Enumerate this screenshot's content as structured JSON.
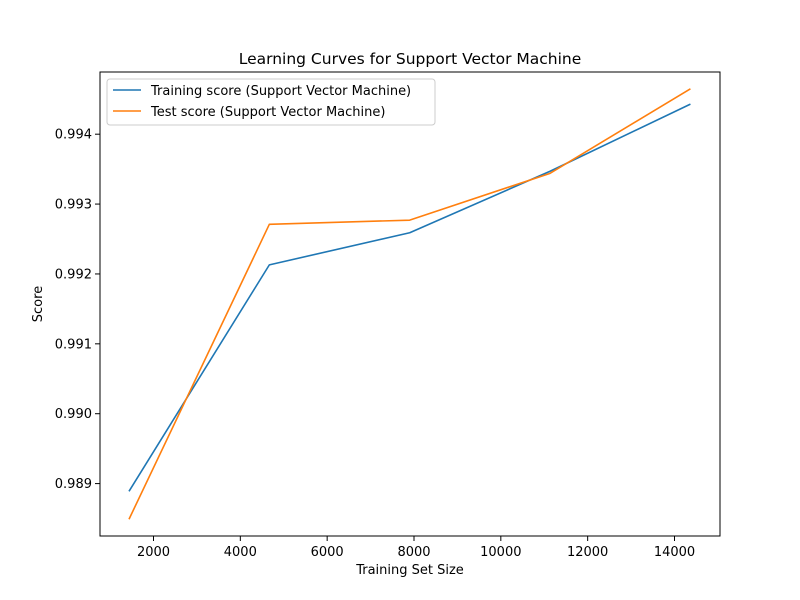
{
  "chart_data": {
    "type": "line",
    "title": "Learning Curves for Support Vector Machine",
    "xlabel": "Training Set Size",
    "ylabel": "Score",
    "xlim": [
      768,
      15048
    ],
    "ylim": [
      0.98825,
      0.99489
    ],
    "xticks": [
      2000,
      4000,
      6000,
      8000,
      10000,
      12000,
      14000
    ],
    "xtick_labels": [
      "2000",
      "4000",
      "6000",
      "8000",
      "10000",
      "12000",
      "14000"
    ],
    "yticks": [
      0.989,
      0.99,
      0.991,
      0.992,
      0.993,
      0.994
    ],
    "ytick_labels": [
      "0.989",
      "0.990",
      "0.991",
      "0.992",
      "0.993",
      "0.994"
    ],
    "grid": false,
    "legend_position": "upper-left",
    "x": [
      1436,
      4668,
      7901,
      11134,
      14367
    ],
    "series": [
      {
        "name": "Training score (Support Vector Machine)",
        "color": "#1f77b4",
        "values": [
          0.98889,
          0.99213,
          0.99259,
          0.99347,
          0.99443
        ]
      },
      {
        "name": "Test score (Support Vector Machine)",
        "color": "#ff7f0e",
        "values": [
          0.98849,
          0.99271,
          0.99277,
          0.99344,
          0.99465
        ]
      }
    ]
  }
}
